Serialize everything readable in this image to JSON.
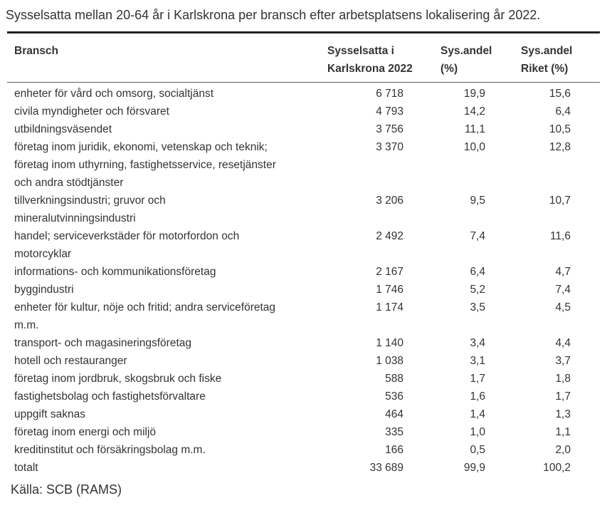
{
  "title": "Sysselsatta mellan 20-64 år i Karlskrona per bransch efter arbetsplatsens lokalisering år 2022.",
  "source": "Källa: SCB (RAMS)",
  "colors": {
    "text": "#333333",
    "rule_heavy": "#222222",
    "rule_light": "#5f5f5f",
    "background": "#ffffff"
  },
  "chart_data": {
    "type": "table",
    "columns": [
      "Bransch",
      "Sysselsatta i Karlskrona 2022",
      "Sys.andel (%)",
      "Sys.andel Riket (%)"
    ],
    "rows": [
      {
        "bransch": [
          "enheter för vård och omsorg, socialtjänst"
        ],
        "sysselsatta_karlskrona": "6 718",
        "sys_andel": "19,9",
        "sys_andel_riket": "15,6"
      },
      {
        "bransch": [
          "civila myndigheter och försvaret"
        ],
        "sysselsatta_karlskrona": "4 793",
        "sys_andel": "14,2",
        "sys_andel_riket": "6,4"
      },
      {
        "bransch": [
          "utbildningsväsendet"
        ],
        "sysselsatta_karlskrona": "3 756",
        "sys_andel": "11,1",
        "sys_andel_riket": "10,5"
      },
      {
        "bransch": [
          "företag inom juridik, ekonomi, vetenskap och teknik;",
          "företag inom uthyrning, fastighetsservice, resetjänster",
          "och andra stödtjänster"
        ],
        "sysselsatta_karlskrona": "3 370",
        "sys_andel": "10,0",
        "sys_andel_riket": "12,8"
      },
      {
        "bransch": [
          "tillverkningsindustri; gruvor och",
          "mineralutvinningsindustri"
        ],
        "sysselsatta_karlskrona": "3 206",
        "sys_andel": "9,5",
        "sys_andel_riket": "10,7"
      },
      {
        "bransch": [
          "handel; serviceverkstäder för motorfordon och",
          "motorcyklar"
        ],
        "sysselsatta_karlskrona": "2 492",
        "sys_andel": "7,4",
        "sys_andel_riket": "11,6"
      },
      {
        "bransch": [
          "informations- och kommunikationsföretag"
        ],
        "sysselsatta_karlskrona": "2 167",
        "sys_andel": "6,4",
        "sys_andel_riket": "4,7"
      },
      {
        "bransch": [
          "byggindustri"
        ],
        "sysselsatta_karlskrona": "1 746",
        "sys_andel": "5,2",
        "sys_andel_riket": "7,4"
      },
      {
        "bransch": [
          "enheter för kultur, nöje och fritid; andra serviceföretag",
          "m.m."
        ],
        "sysselsatta_karlskrona": "1 174",
        "sys_andel": "3,5",
        "sys_andel_riket": "4,5"
      },
      {
        "bransch": [
          "transport- och magasineringsföretag"
        ],
        "sysselsatta_karlskrona": "1 140",
        "sys_andel": "3,4",
        "sys_andel_riket": "4,4"
      },
      {
        "bransch": [
          "hotell och restauranger"
        ],
        "sysselsatta_karlskrona": "1 038",
        "sys_andel": "3,1",
        "sys_andel_riket": "3,7"
      },
      {
        "bransch": [
          "företag inom jordbruk, skogsbruk och fiske"
        ],
        "sysselsatta_karlskrona": "588",
        "sys_andel": "1,7",
        "sys_andel_riket": "1,8"
      },
      {
        "bransch": [
          "fastighetsbolag och fastighetsförvaltare"
        ],
        "sysselsatta_karlskrona": "536",
        "sys_andel": "1,6",
        "sys_andel_riket": "1,7"
      },
      {
        "bransch": [
          "uppgift saknas"
        ],
        "sysselsatta_karlskrona": "464",
        "sys_andel": "1,4",
        "sys_andel_riket": "1,3"
      },
      {
        "bransch": [
          "företag inom energi och miljö"
        ],
        "sysselsatta_karlskrona": "335",
        "sys_andel": "1,0",
        "sys_andel_riket": "1,1"
      },
      {
        "bransch": [
          "kreditinstitut och försäkringsbolag m.m."
        ],
        "sysselsatta_karlskrona": "166",
        "sys_andel": "0,5",
        "sys_andel_riket": "2,0"
      },
      {
        "bransch": [
          "totalt"
        ],
        "sysselsatta_karlskrona": "33 689",
        "sys_andel": "99,9",
        "sys_andel_riket": "100,2"
      }
    ]
  }
}
